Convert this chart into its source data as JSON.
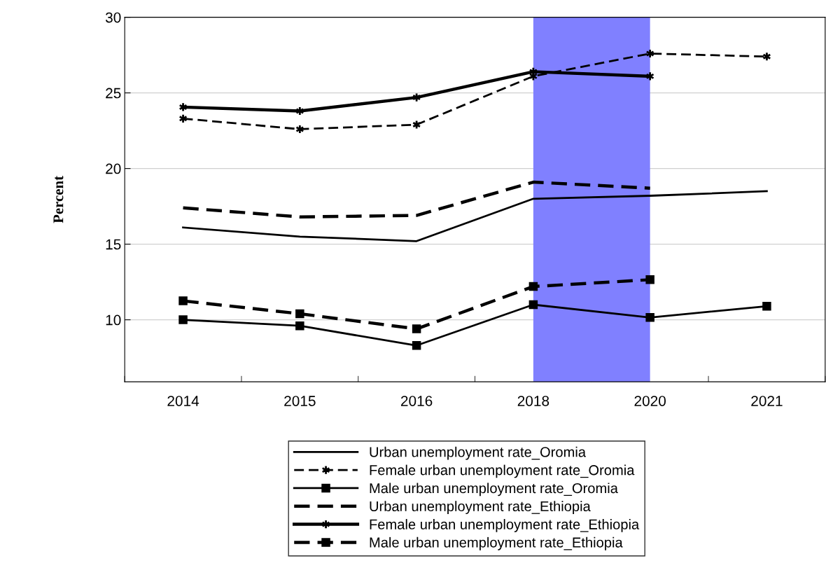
{
  "chart_data": {
    "type": "line",
    "ylabel": "Percent",
    "categories": [
      "2014",
      "2015",
      "2016",
      "2018",
      "2020",
      "2021"
    ],
    "ylim": [
      5.9,
      30
    ],
    "yticks": [
      10,
      15,
      20,
      25,
      30
    ],
    "grid": "y",
    "legend": "bottom",
    "bands": [
      {
        "axis": "x",
        "from": "2018",
        "to": "2020",
        "color": "#8080ff"
      }
    ],
    "series": [
      {
        "name": "Urban unemployment rate_Oromia",
        "color": "#000000",
        "marker": "none",
        "line_style": "solid",
        "values": [
          16.1,
          15.5,
          15.2,
          18.0,
          18.2,
          18.5
        ]
      },
      {
        "name": "Female urban unemployment rate_Oromia",
        "color": "#000000",
        "marker": "cross",
        "line_style": "dashed",
        "values": [
          23.3,
          22.6,
          22.9,
          26.1,
          27.6,
          27.4
        ]
      },
      {
        "name": "Male urban unemployment rate_Oromia",
        "color": "#000000",
        "marker": "square",
        "line_style": "solid",
        "values": [
          10.0,
          9.6,
          8.3,
          11.0,
          10.15,
          10.9
        ]
      },
      {
        "name": "Urban unemployment rate_Ethiopia",
        "color": "#000000",
        "marker": "none",
        "line_style": "dashed",
        "values": [
          17.4,
          16.8,
          16.9,
          19.1,
          18.7,
          null
        ]
      },
      {
        "name": "Female urban unemployment rate_Ethiopia",
        "color": "#000000",
        "marker": "cross",
        "line_style": "solid",
        "values": [
          24.06,
          23.8,
          24.7,
          26.4,
          26.1,
          null
        ]
      },
      {
        "name": "Male urban unemployment rate_Ethiopia",
        "color": "#000000",
        "marker": "square",
        "line_style": "dashed",
        "values": [
          11.25,
          10.4,
          9.4,
          12.2,
          12.65,
          null
        ]
      }
    ]
  }
}
